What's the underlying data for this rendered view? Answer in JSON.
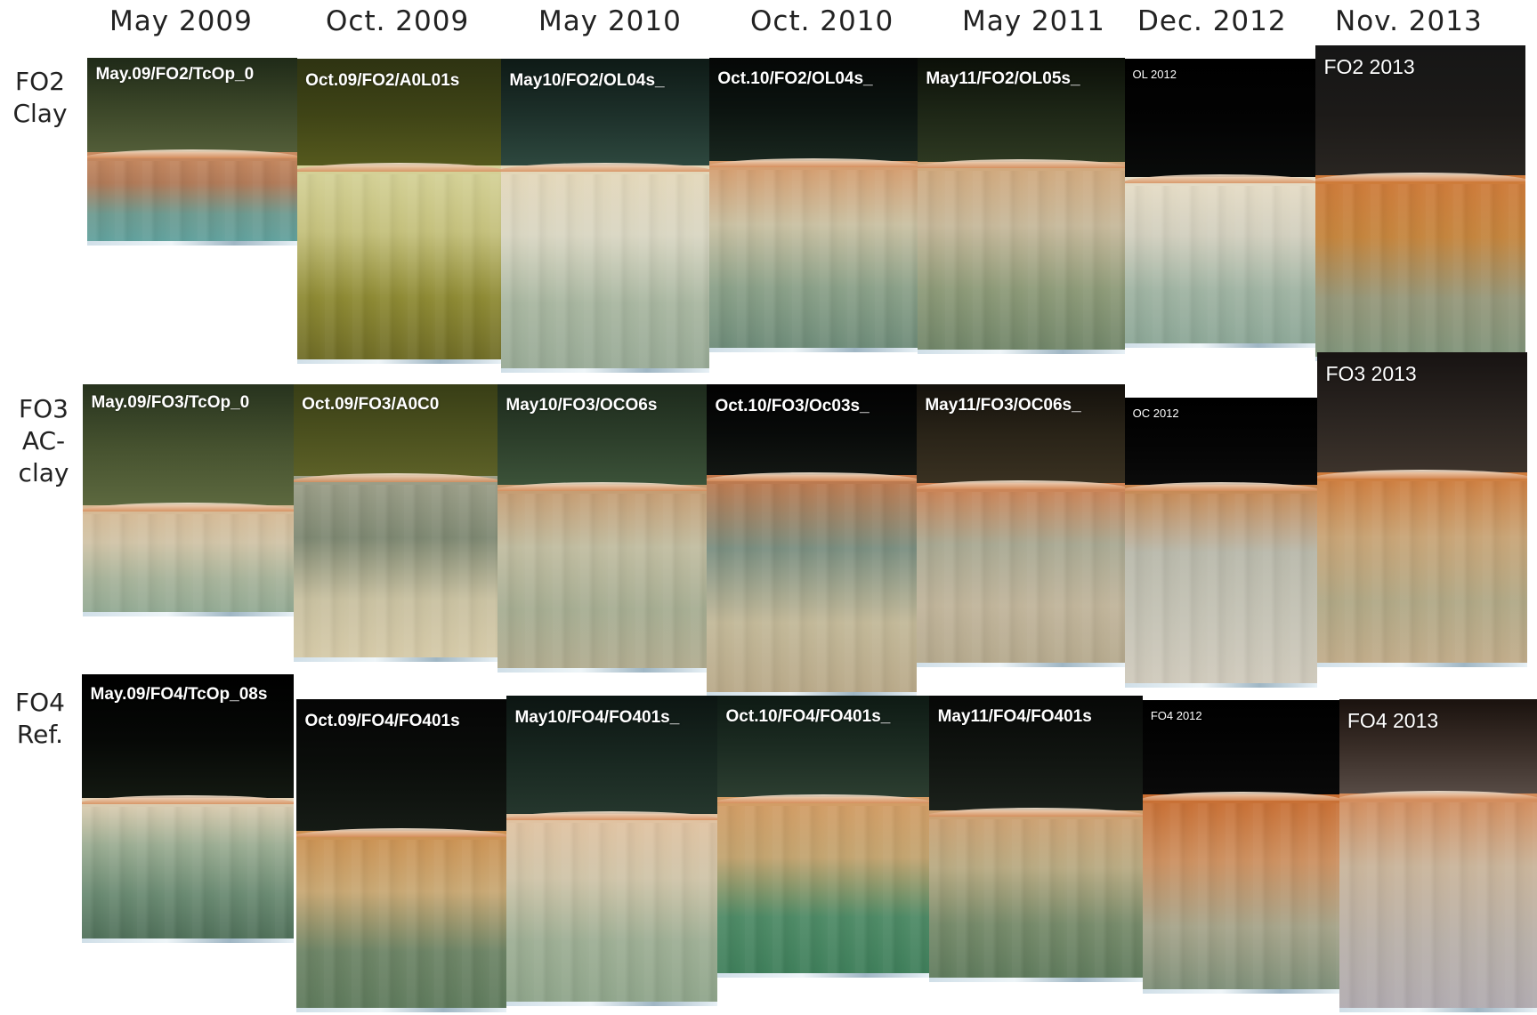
{
  "columns": [
    "May 2009",
    "Oct. 2009",
    "May 2010",
    "Oct. 2010",
    "May 2011",
    "Dec. 2012",
    "Nov. 2013"
  ],
  "rows": [
    {
      "label": "FO2\nClay"
    },
    {
      "label": "FO3\nAC-\nclay"
    },
    {
      "label": "FO4\nRef."
    }
  ],
  "photos": [
    {
      "caption": "May.09/FO2/TcOp_0"
    },
    {
      "caption": "Oct.09/FO2/A0L01s"
    },
    {
      "caption": "May10/FO2/OL04s_"
    },
    {
      "caption": "Oct.10/FO2/OL04s_"
    },
    {
      "caption": "May11/FO2/OL05s_"
    },
    {
      "caption": "OL 2012"
    },
    {
      "caption": "FO2 2013"
    },
    {
      "caption": "May.09/FO3/TcOp_0"
    },
    {
      "caption": "Oct.09/FO3/A0C0"
    },
    {
      "caption": "May10/FO3/OCO6s"
    },
    {
      "caption": "Oct.10/FO3/Oc03s_"
    },
    {
      "caption": "May11/FO3/OC06s_"
    },
    {
      "caption": "OC 2012"
    },
    {
      "caption": "FO3 2013"
    },
    {
      "caption": "May.09/FO4/TcOp_08s"
    },
    {
      "caption": "Oct.09/FO4/FO401s"
    },
    {
      "caption": "May10/FO4/FO401s_"
    },
    {
      "caption": "Oct.10/FO4/FO401s_"
    },
    {
      "caption": "May11/FO4/FO401s"
    },
    {
      "caption": "FO4 2012"
    },
    {
      "caption": "FO4 2013"
    }
  ]
}
